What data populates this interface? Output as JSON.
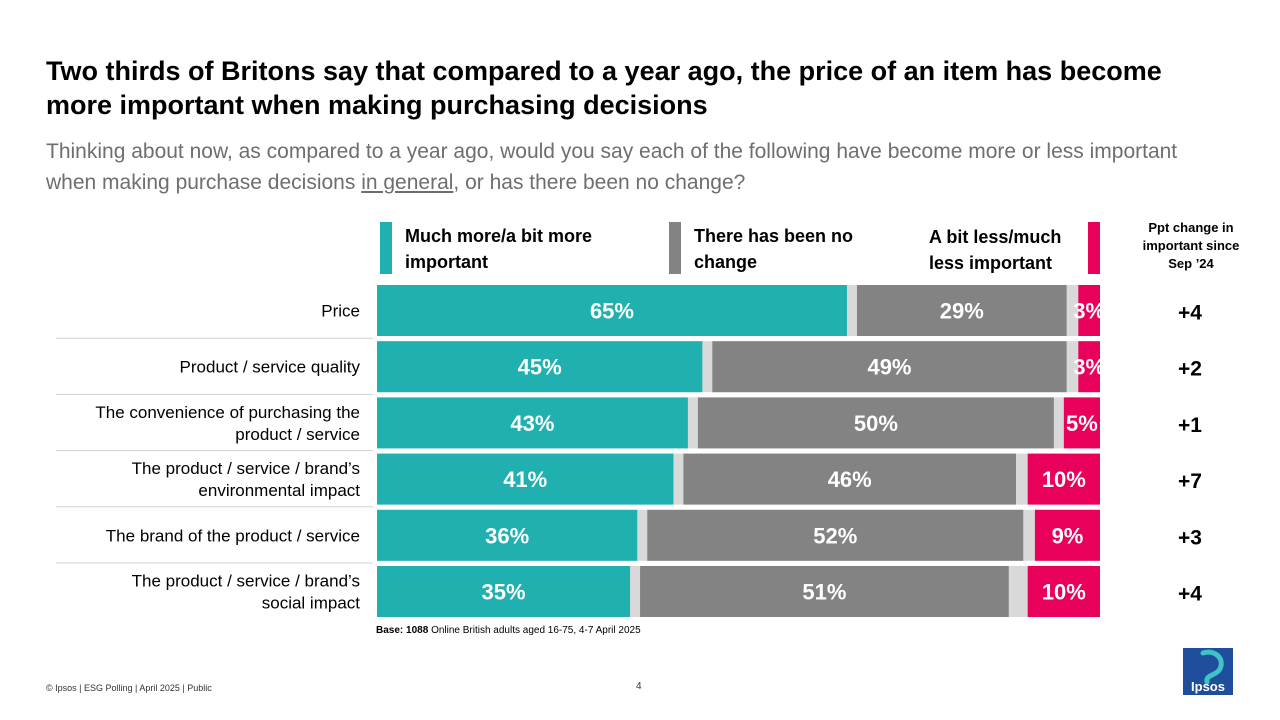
{
  "title": "Two thirds of Britons say that compared to a year ago, the price of an item has become more important when making purchasing decisions",
  "subtitle": {
    "before": "Thinking about now, as compared to a year ago, would you say each of the following have become more or less important when making purchase decisions ",
    "underlined": "in general",
    "after": ", or has there been no change?"
  },
  "colors": {
    "more": "#21b0b0",
    "no_change": "#838383",
    "less": "#e8005a",
    "gap": "#d9d9d9",
    "divider": "#d0d0d0"
  },
  "legend": {
    "more_label": "Much more/a bit more important",
    "no_change_label": "There has been no change",
    "less_label": "A bit less/much less important"
  },
  "ppt_header": "Ppt change in important since Sep ’24",
  "chart_data": {
    "type": "stacked-bar-horizontal",
    "title": "Two thirds of Britons say that compared to a year ago, the price of an item has become more important when making purchasing decisions",
    "categories": [
      "Price",
      "Product / service quality",
      "The convenience of purchasing the product / service",
      "The product / service / brand’s environmental impact",
      "The brand of the product / service",
      "The product / service / brand’s social impact"
    ],
    "series": [
      {
        "name": "Much more/a bit more important",
        "values": [
          65,
          45,
          43,
          41,
          36,
          35
        ],
        "labels": [
          "65%",
          "45%",
          "43%",
          "41%",
          "36%",
          "35%"
        ]
      },
      {
        "name": "There has been no change",
        "values": [
          29,
          49,
          50,
          46,
          52,
          51
        ],
        "labels": [
          "29%",
          "49%",
          "50%",
          "46%",
          "52%",
          "51%"
        ]
      },
      {
        "name": "A bit less/much less important",
        "values": [
          3,
          3,
          5,
          10,
          9,
          10
        ],
        "labels": [
          "3%",
          "3%",
          "5%",
          "10%",
          "9%",
          "10%"
        ]
      }
    ],
    "ppt_change": [
      "+4",
      "+2",
      "+1",
      "+7",
      "+3",
      "+4"
    ],
    "xlim": [
      0,
      100
    ]
  },
  "base": {
    "label": "Base:",
    "n": "1088",
    "text": "Online British adults aged 16-75, 4-7 April 2025"
  },
  "footer": "© Ipsos | ESG Polling | April 2025 | Public",
  "page_number": "4",
  "logo_text": "Ipsos"
}
